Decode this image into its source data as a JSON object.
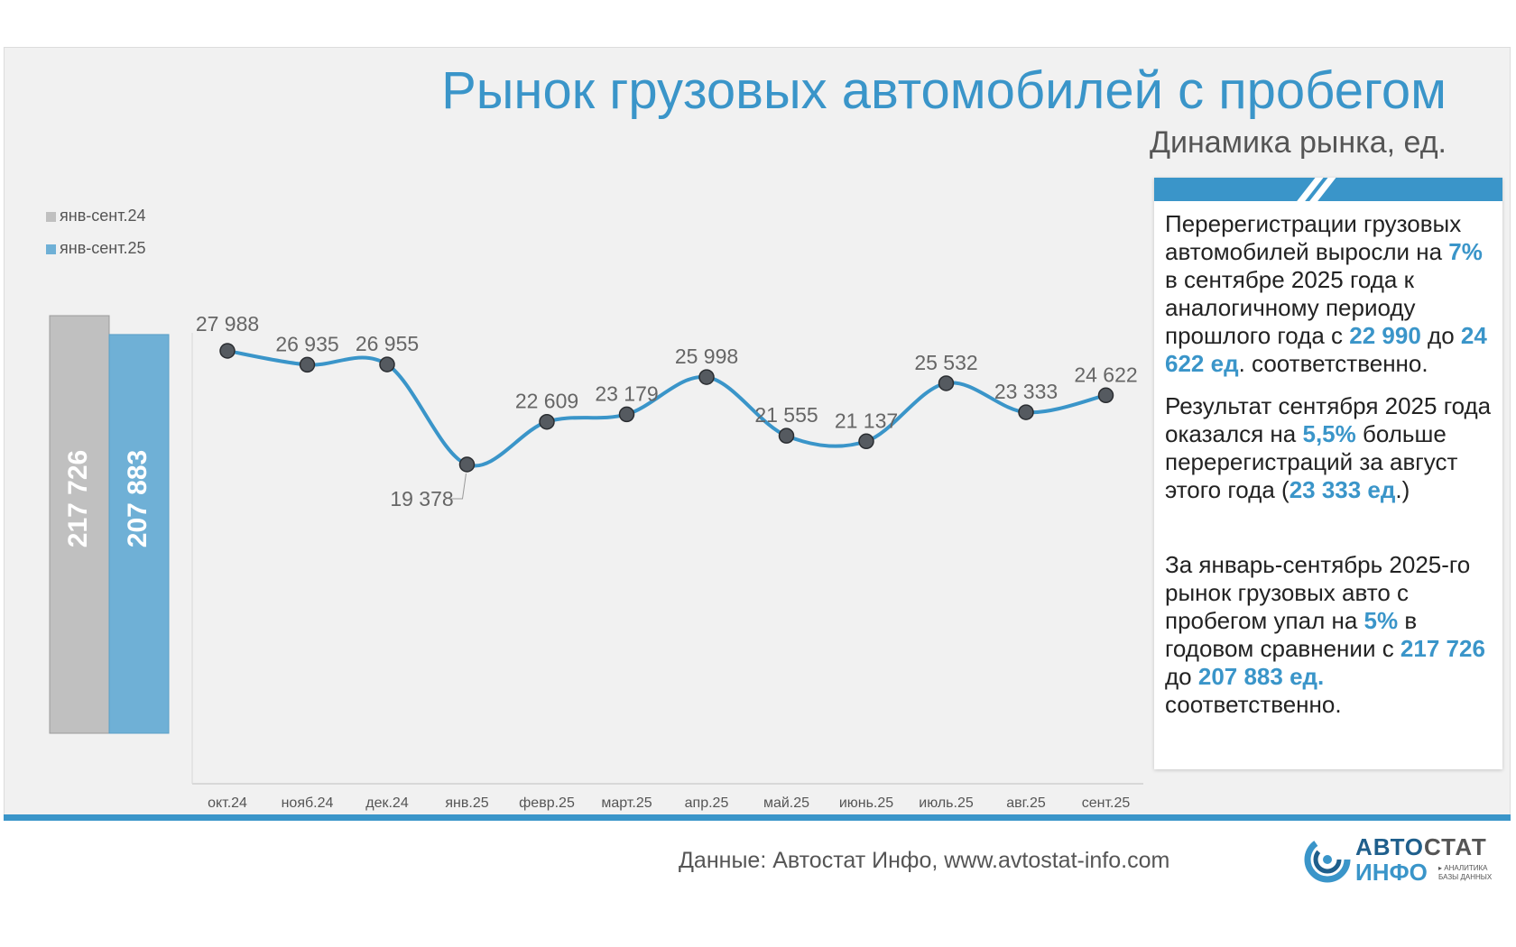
{
  "title": "Рынок грузовых автомобилей с пробегом",
  "subtitle": "Динамика рынка, ед.",
  "colors": {
    "accent": "#3a95c9",
    "bar_2024": "#c0c0c0",
    "bar_2025": "#6fb0d6",
    "marker": "#555a60"
  },
  "legend": {
    "items": [
      {
        "label": "янв-сент.24",
        "color": "#c0c0c0"
      },
      {
        "label": "янв-сент.25",
        "color": "#6fb0d6"
      }
    ]
  },
  "chart_data": [
    {
      "type": "bar",
      "categories": [
        "янв-сент.24",
        "янв-сент.25"
      ],
      "values": [
        217726,
        207883
      ],
      "value_labels": [
        "217 726",
        "207 883"
      ],
      "ylim": [
        0,
        217726
      ]
    },
    {
      "type": "line",
      "categories": [
        "окт.24",
        "нояб.24",
        "дек.24",
        "янв.25",
        "февр.25",
        "март.25",
        "апр.25",
        "май.25",
        "июнь.25",
        "июль.25",
        "авг.25",
        "сент.25"
      ],
      "values": [
        27988,
        26935,
        26955,
        19378,
        22609,
        23179,
        25998,
        21555,
        21137,
        25532,
        23333,
        24622
      ],
      "value_labels": [
        "27 988",
        "26 935",
        "26 955",
        "19 378",
        "22 609",
        "23 179",
        "25 998",
        "21 555",
        "21 137",
        "25 532",
        "23 333",
        "24 622"
      ],
      "ylim": [
        0,
        30000
      ],
      "smooth": true,
      "grid": false
    }
  ],
  "panel": {
    "p1": {
      "a": "Перерегистрации грузовых автомобилей выросли на ",
      "b": "7%",
      "c": " в сентябре 2025 года к аналогичному периоду прошлого года с ",
      "d": "22 990",
      "e": " до ",
      "f": "24 622 ед",
      "g": ". соответственно."
    },
    "p2": {
      "a": "Результат сентября 2025 года оказался на ",
      "b": "5,5%",
      "c": " больше перерегистраций за август этого года (",
      "d": "23 333 ед",
      "e": ".)"
    },
    "p3": {
      "a": "За январь-сентябрь 2025-го рынок грузовых авто с пробегом упал на ",
      "b": "5%",
      "c": " в годовом сравнении с ",
      "d": "217 726",
      "e": " до ",
      "f": "207 883 ед.",
      "g": " соответственно."
    }
  },
  "footer": {
    "source": "Данные: Автостат Инфо, www.avtostat-info.com"
  },
  "logo": {
    "line1_a": "АВТО",
    "line1_b": "СТАТ",
    "line2": "ИНФО",
    "tagline": "▸ АНАЛИТИКА\nБАЗЫ ДАННЫХ"
  }
}
